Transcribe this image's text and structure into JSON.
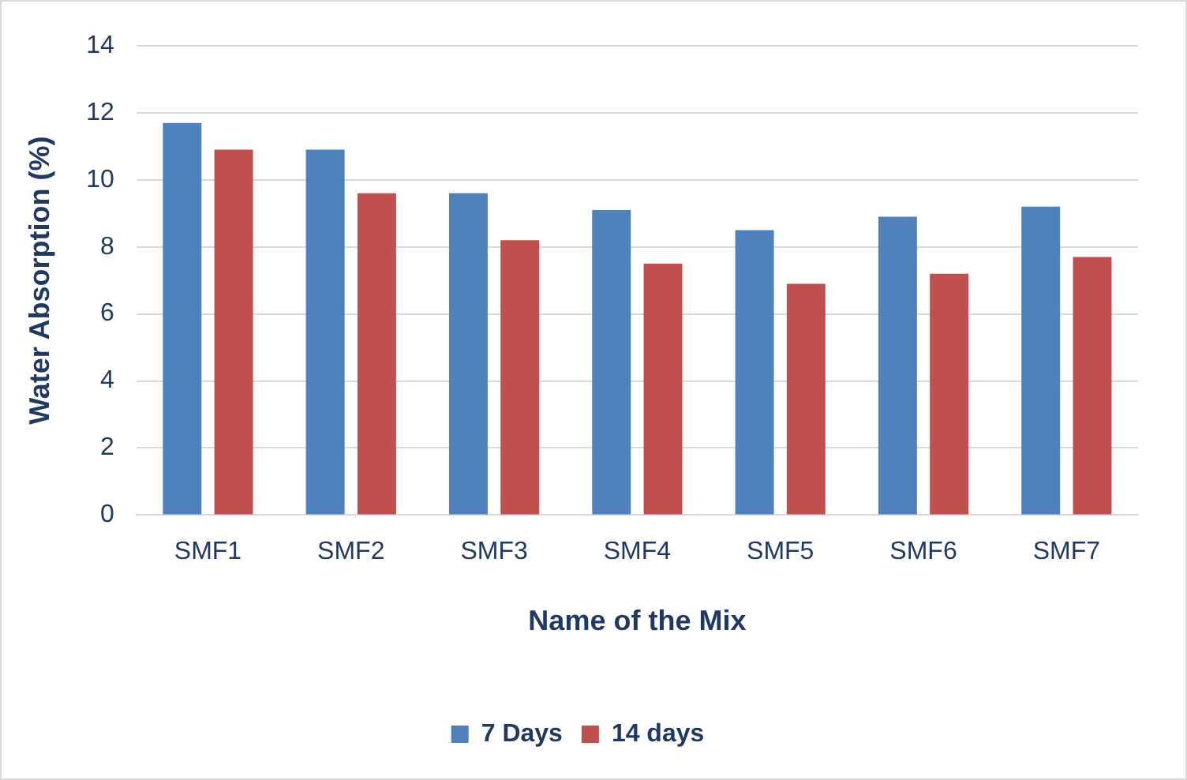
{
  "chart_data": {
    "type": "bar",
    "xlabel": "Name of the Mix",
    "ylabel": "Water Absorption (%)",
    "categories": [
      "SMF1",
      "SMF2",
      "SMF3",
      "SMF4",
      "SMF5",
      "SMF6",
      "SMF7"
    ],
    "series": [
      {
        "name": "7 Days",
        "color": "#4f81bd",
        "values": [
          11.7,
          10.9,
          9.6,
          9.1,
          8.5,
          8.9,
          9.2
        ]
      },
      {
        "name": "14 days",
        "color": "#c0504d",
        "values": [
          10.9,
          9.6,
          8.2,
          7.5,
          6.9,
          7.2,
          7.7
        ]
      }
    ],
    "ylim": [
      0,
      14
    ],
    "yticks": [
      0,
      2,
      4,
      6,
      8,
      10,
      12,
      14
    ],
    "grid": "y",
    "legend": "bottom"
  }
}
